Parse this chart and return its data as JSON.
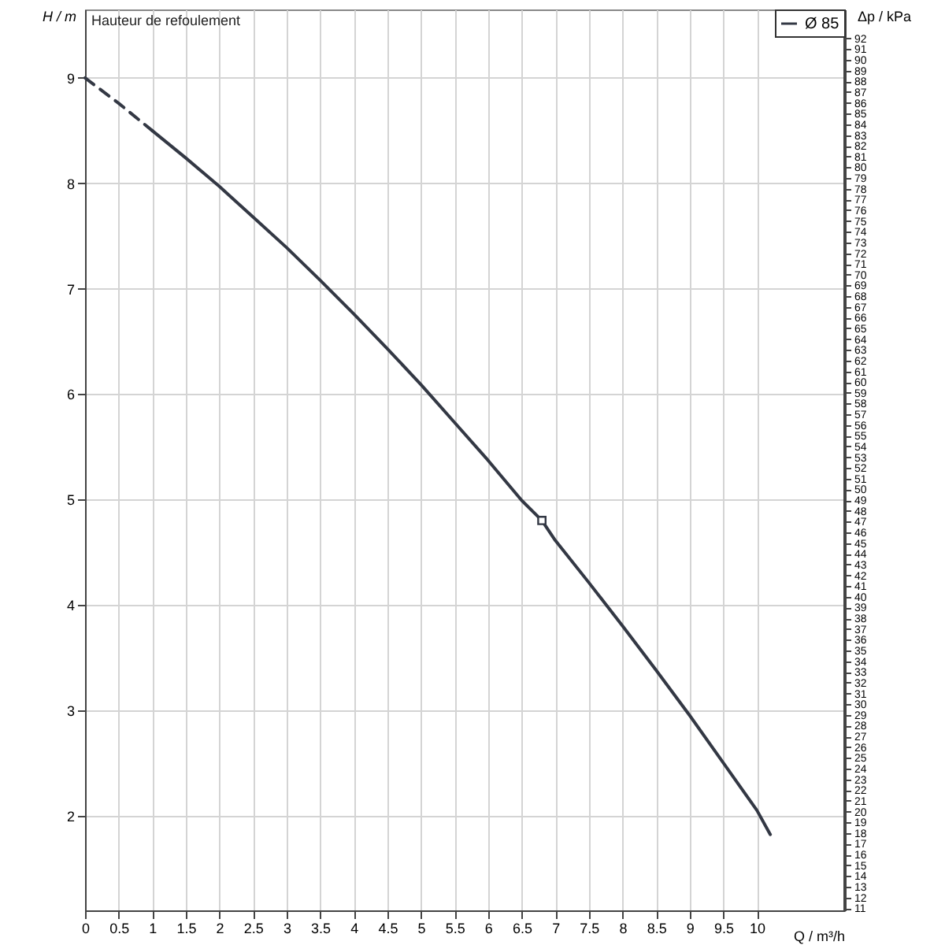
{
  "chart_data": {
    "type": "line",
    "title": "Hauteur de refoulement",
    "xlabel": "Q / m³/h",
    "ylabel": "H / m",
    "y2label": "Δp / kPa",
    "xlim": [
      0,
      11.3
    ],
    "xticks": [
      0,
      0.5,
      1,
      1.5,
      2,
      2.5,
      3,
      3.5,
      4,
      4.5,
      5,
      5.5,
      6,
      6.5,
      7,
      7.5,
      8,
      8.5,
      9,
      9.5,
      10
    ],
    "ylim": [
      1.1,
      9.65
    ],
    "yticks": [
      2,
      3,
      4,
      5,
      6,
      7,
      8,
      9
    ],
    "y2lim": [
      10.8,
      94.7
    ],
    "y2ticks": [
      11,
      12,
      13,
      14,
      15,
      16,
      17,
      18,
      19,
      20,
      21,
      22,
      23,
      24,
      25,
      26,
      27,
      28,
      29,
      30,
      31,
      32,
      33,
      34,
      35,
      36,
      37,
      38,
      39,
      40,
      41,
      42,
      43,
      44,
      45,
      46,
      47,
      48,
      49,
      50,
      51,
      52,
      53,
      54,
      55,
      56,
      57,
      58,
      59,
      60,
      61,
      62,
      63,
      64,
      65,
      66,
      67,
      68,
      69,
      70,
      71,
      72,
      73,
      74,
      75,
      76,
      77,
      78,
      79,
      80,
      81,
      82,
      83,
      84,
      85,
      86,
      87,
      88,
      89,
      90,
      91,
      92
    ],
    "grid": true,
    "legend": "top right",
    "series": [
      {
        "line_style": "dashed",
        "color": "#333844",
        "x": [
          0,
          0.5,
          1
        ],
        "values": [
          9,
          8.76,
          8.5
        ]
      },
      {
        "line_style": "solid",
        "name": "Ø 85",
        "color": "#333844",
        "x": [
          1,
          1.5,
          2,
          2.5,
          3,
          3.5,
          4,
          4.5,
          5,
          5.5,
          6,
          6.5,
          6.8,
          7,
          7.5,
          8,
          8.5,
          9,
          9.5,
          10,
          10.2
        ],
        "values": [
          8.5,
          8.24,
          7.97,
          7.68,
          7.39,
          7.08,
          6.76,
          6.43,
          6.09,
          5.73,
          5.37,
          4.99,
          4.8,
          4.61,
          4.21,
          3.8,
          3.38,
          2.95,
          2.5,
          2.05,
          1.82
        ]
      },
      {
        "type": "scatter",
        "marker": "square",
        "color": "#333844",
        "x": [
          6.8
        ],
        "values": [
          4.8
        ]
      }
    ]
  }
}
